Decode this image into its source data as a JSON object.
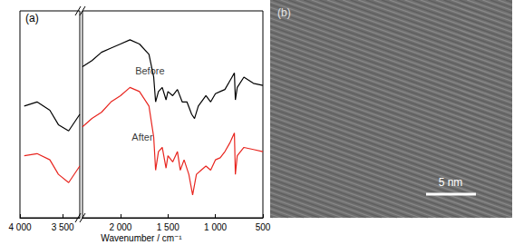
{
  "chart_data": {
    "type": "line",
    "panel_label": "(a)",
    "xlabel": "Wavenumber / cm⁻¹",
    "xlim": [
      4000,
      500
    ],
    "xbreak": [
      3300,
      2400
    ],
    "xticks": [
      {
        "value": 4000,
        "label": "4 000"
      },
      {
        "value": 3500,
        "label": "3 500"
      },
      {
        "value": 2000,
        "label": "2 000"
      },
      {
        "value": 1500,
        "label": "1 500"
      },
      {
        "value": 1000,
        "label": "1 000"
      },
      500
    ],
    "ylim": [
      0,
      100
    ],
    "tick_labels": "x",
    "grid": false,
    "line_style": "solid",
    "series": [
      {
        "name": "Before",
        "color": "#000000",
        "x": [
          3950,
          3800,
          3650,
          3550,
          3430,
          3300,
          2400,
          2300,
          2200,
          2100,
          2000,
          1900,
          1800,
          1700,
          1650,
          1630,
          1600,
          1560,
          1520,
          1500,
          1450,
          1400,
          1350,
          1300,
          1250,
          1220,
          1180,
          1100,
          1050,
          1000,
          950,
          900,
          850,
          800,
          790,
          770,
          700,
          600,
          500
        ],
        "values": [
          54,
          56,
          52,
          45,
          42,
          50,
          73,
          76,
          80,
          82,
          84,
          86,
          84,
          79,
          68,
          56,
          61,
          63,
          57,
          61,
          59,
          62,
          56,
          56,
          50,
          48,
          54,
          59,
          56,
          60,
          61,
          62,
          66,
          70,
          57,
          63,
          68,
          65,
          64
        ]
      },
      {
        "name": "After",
        "color": "#e8251f",
        "x": [
          3950,
          3800,
          3650,
          3550,
          3430,
          3300,
          2400,
          2300,
          2200,
          2100,
          2000,
          1900,
          1800,
          1700,
          1650,
          1630,
          1600,
          1560,
          1520,
          1500,
          1450,
          1400,
          1370,
          1330,
          1280,
          1240,
          1200,
          1150,
          1100,
          1050,
          1000,
          950,
          900,
          850,
          800,
          790,
          770,
          700,
          600,
          500
        ],
        "values": [
          30,
          31,
          28,
          21,
          17,
          25,
          44,
          48,
          51,
          56,
          59,
          63,
          61,
          54,
          39,
          23,
          32,
          34,
          24,
          30,
          27,
          32,
          23,
          28,
          21,
          11,
          21,
          23,
          25,
          23,
          28,
          29,
          32,
          36,
          41,
          21,
          30,
          34,
          33,
          32
        ]
      }
    ],
    "annotations": [
      {
        "text": "Before",
        "x": 1690,
        "y": 71
      },
      {
        "text": "After",
        "x": 1770,
        "y": 39
      }
    ]
  },
  "image_panel": {
    "label": "(b)",
    "scale_bar": "5 nm"
  }
}
